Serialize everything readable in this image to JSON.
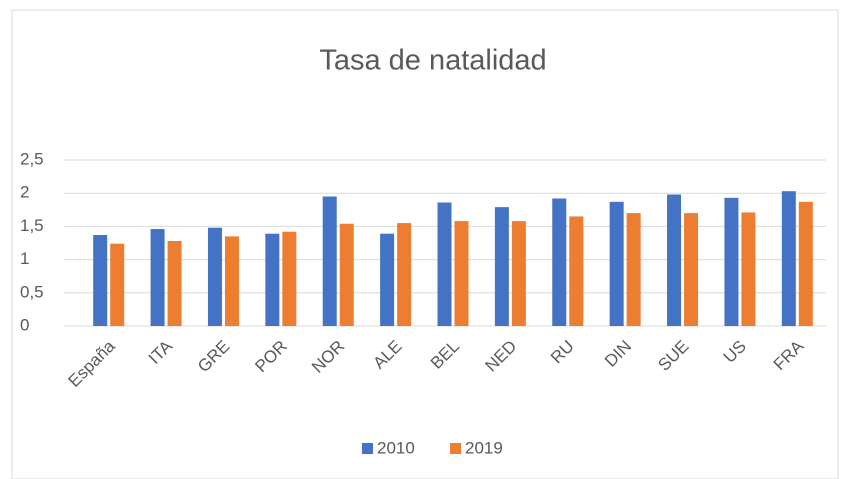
{
  "chart_data": {
    "type": "bar",
    "title": "Tasa de natalidad",
    "categories": [
      "España",
      "ITA",
      "GRE",
      "POR",
      "NOR",
      "ALE",
      "BEL",
      "NED",
      "RU",
      "DIN",
      "SUE",
      "US",
      "FRA"
    ],
    "series": [
      {
        "name": "2010",
        "color": "#4472c4",
        "values": [
          1.37,
          1.46,
          1.48,
          1.39,
          1.95,
          1.39,
          1.86,
          1.79,
          1.92,
          1.87,
          1.98,
          1.93,
          2.03
        ]
      },
      {
        "name": "2019",
        "color": "#ed7d31",
        "values": [
          1.24,
          1.28,
          1.35,
          1.42,
          1.54,
          1.55,
          1.58,
          1.58,
          1.65,
          1.7,
          1.7,
          1.71,
          1.87
        ]
      }
    ],
    "ylim": [
      0,
      2.5
    ],
    "yticks": [
      0,
      {
        "value": 0.5,
        "label": "0,5"
      },
      1,
      {
        "value": 1.5,
        "label": "1,5"
      },
      2,
      {
        "value": 2.5,
        "label": "2,5"
      }
    ],
    "grid": true,
    "legend": "bottom"
  }
}
